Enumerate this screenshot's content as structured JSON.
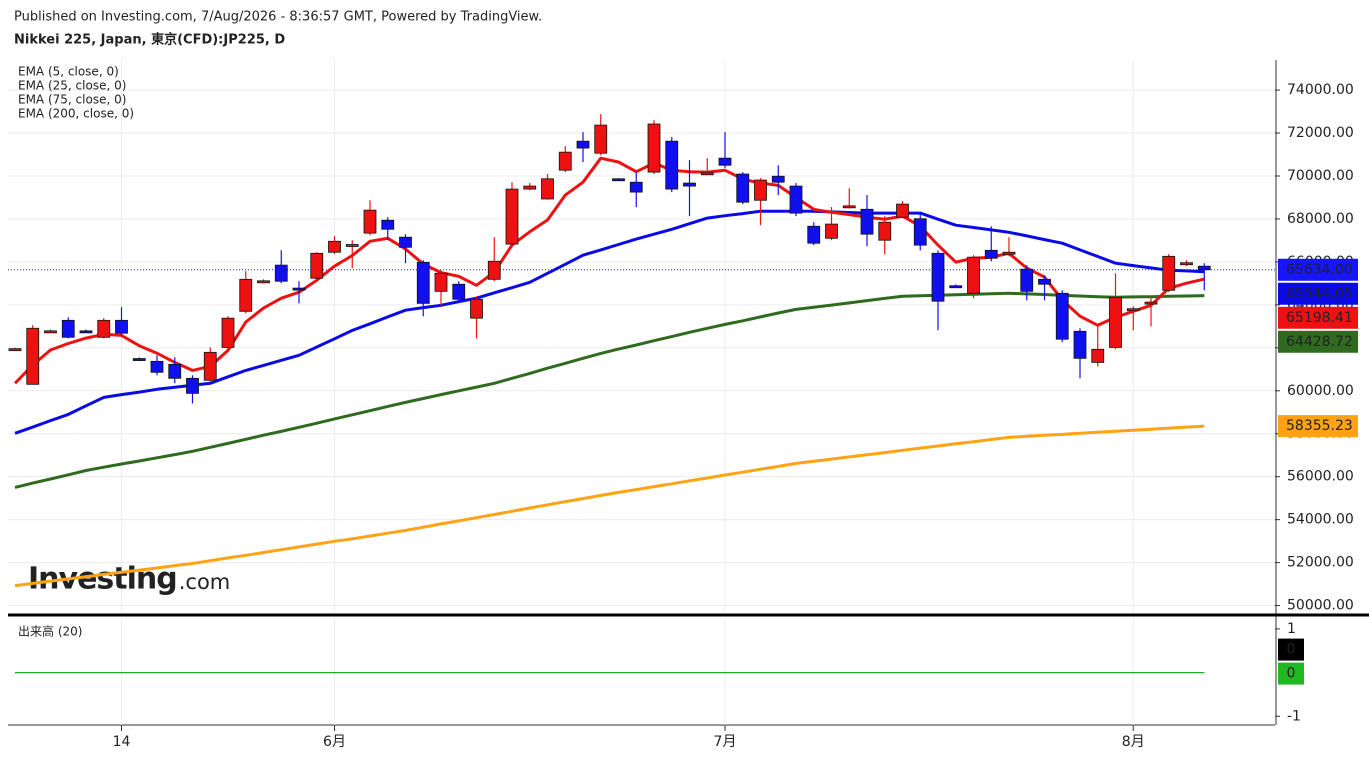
{
  "chart_data": {
    "type": "candlestick",
    "subtitle": "Published on Investing.com, 7/Aug/2026 - 8:36:57 GMT, Powered by TradingView.",
    "title": "Nikkei 225, Japan, 東京(CFD):JP225, D",
    "watermark": [
      "Investing",
      ".com"
    ],
    "categories": [
      null,
      null,
      null,
      null,
      null,
      null,
      "14",
      null,
      null,
      null,
      null,
      null,
      null,
      null,
      null,
      null,
      null,
      null,
      "6月",
      null,
      null,
      null,
      null,
      null,
      null,
      null,
      null,
      null,
      null,
      null,
      null,
      null,
      null,
      null,
      null,
      null,
      null,
      null,
      null,
      null,
      "7月",
      null,
      null,
      null,
      null,
      null,
      null,
      null,
      null,
      null,
      null,
      null,
      null,
      null,
      null,
      null,
      null,
      null,
      null,
      null,
      null,
      null,
      null,
      "8月",
      null,
      null,
      null,
      null
    ],
    "open": [
      61930,
      60300,
      62750,
      63280,
      62790,
      62490,
      63280,
      61500,
      61370,
      61230,
      60580,
      60490,
      62020,
      63700,
      65080,
      65850,
      64780,
      65240,
      66450,
      66740,
      67340,
      67940,
      67150,
      65980,
      64630,
      64960,
      63380,
      65190,
      66830,
      69390,
      68930,
      70270,
      71620,
      71060,
      69870,
      69710,
      70180,
      71620,
      69670,
      70110,
      70830,
      70090,
      68870,
      69990,
      69530,
      67660,
      67100,
      68570,
      68450,
      67010,
      68080,
      68010,
      66400,
      64890,
      64540,
      66540,
      66420,
      65660,
      65190,
      64540,
      62770,
      61320,
      62020,
      63770,
      64100,
      64680,
      65930,
      65800
    ],
    "high": [
      62000,
      63050,
      62850,
      63420,
      62850,
      63380,
      63890,
      61550,
      61650,
      61560,
      60720,
      62020,
      63470,
      65570,
      65190,
      66540,
      65100,
      66450,
      67200,
      67010,
      68870,
      68080,
      67290,
      66080,
      65610,
      65100,
      64400,
      67150,
      69710,
      69670,
      70090,
      71390,
      72040,
      72880,
      69900,
      70180,
      72600,
      71810,
      70740,
      70830,
      72040,
      70180,
      69900,
      70500,
      69670,
      67850,
      68550,
      69430,
      69110,
      68130,
      68830,
      68220,
      66540,
      64950,
      66310,
      67660,
      67150,
      65850,
      65380,
      64680,
      62910,
      63050,
      65470,
      63930,
      64310,
      66360,
      66080,
      65940
    ],
    "low": [
      61900,
      60300,
      62700,
      62440,
      62700,
      62440,
      62580,
      61380,
      60720,
      60350,
      59410,
      60390,
      61930,
      63610,
      65010,
      65010,
      64070,
      65150,
      66360,
      65710,
      67240,
      67010,
      65940,
      63470,
      63980,
      64120,
      62440,
      65100,
      66730,
      69340,
      68900,
      70180,
      70650,
      70970,
      69800,
      68550,
      70090,
      69250,
      68130,
      70040,
      70370,
      68690,
      67710,
      69110,
      68130,
      66780,
      67010,
      68500,
      66730,
      66360,
      68040,
      66540,
      62820,
      64800,
      64310,
      66030,
      66260,
      64210,
      64210,
      62260,
      60580,
      61140,
      61930,
      62820,
      63000,
      64590,
      65800,
      64680
    ],
    "close": [
      61960,
      62910,
      62790,
      62490,
      62750,
      63280,
      62680,
      61450,
      60860,
      60580,
      59880,
      61790,
      63380,
      65190,
      65120,
      65100,
      64700,
      66400,
      66960,
      66810,
      68410,
      67520,
      66680,
      64070,
      65470,
      64260,
      64260,
      66030,
      69390,
      69530,
      69870,
      71110,
      71300,
      72370,
      69830,
      69250,
      72420,
      69390,
      69530,
      70150,
      70500,
      68780,
      69810,
      69710,
      68270,
      66870,
      67760,
      68610,
      67290,
      67850,
      68690,
      66780,
      64170,
      64850,
      66220,
      66170,
      66450,
      64630,
      64960,
      62400,
      61510,
      61930,
      64350,
      63820,
      64130,
      66260,
      65960,
      65634
    ],
    "up_color": "#ee1111",
    "down_color": "#1010ee",
    "series": [
      {
        "name": "EMA (5, close, 0)",
        "color": "#ee1111",
        "values": [
          60350,
          61200,
          61900,
          62200,
          62450,
          62630,
          62580,
          62100,
          61750,
          61320,
          60950,
          61140,
          61880,
          63200,
          63850,
          64310,
          64590,
          65150,
          65800,
          66300,
          66960,
          67100,
          66600,
          65900,
          65500,
          65330,
          64910,
          65520,
          66780,
          67400,
          67950,
          69110,
          69710,
          70830,
          70650,
          70200,
          70600,
          70270,
          70200,
          70180,
          70270,
          69850,
          69670,
          69560,
          69000,
          68450,
          68310,
          68200,
          68080,
          67990,
          68130,
          67660,
          66780,
          65990,
          66170,
          66220,
          66400,
          65710,
          65290,
          64220,
          63470,
          63050,
          63420,
          63700,
          63980,
          64770,
          65010,
          65198.41
        ]
      },
      {
        "name": "EMA (25, close, 0)",
        "color": "#0a0ae6",
        "values": [
          58020,
          58310,
          58610,
          58900,
          59300,
          59690,
          59820,
          59940,
          60070,
          60160,
          60260,
          60350,
          60650,
          60950,
          61180,
          61420,
          61650,
          62040,
          62420,
          62810,
          63120,
          63440,
          63750,
          63870,
          63980,
          64150,
          64310,
          64560,
          64800,
          65050,
          65470,
          65890,
          66310,
          66560,
          66810,
          67060,
          67290,
          67520,
          67780,
          68040,
          68150,
          68250,
          68360,
          68360,
          68360,
          68360,
          68330,
          68300,
          68270,
          68270,
          68270,
          68270,
          67990,
          67710,
          67600,
          67490,
          67380,
          67210,
          67040,
          66870,
          66560,
          66250,
          65940,
          65830,
          65720,
          65610,
          65580,
          65544.05
        ]
      },
      {
        "name": "EMA (75, close, 0)",
        "color": "#2e6b1e",
        "values": [
          55500,
          55700,
          55890,
          56090,
          56290,
          56440,
          56590,
          56730,
          56880,
          57030,
          57180,
          57370,
          57550,
          57740,
          57930,
          58110,
          58300,
          58490,
          58690,
          58880,
          59070,
          59270,
          59460,
          59640,
          59820,
          60000,
          60170,
          60350,
          60580,
          60810,
          61050,
          61280,
          61510,
          61740,
          61940,
          62130,
          62330,
          62520,
          62720,
          62910,
          63090,
          63260,
          63440,
          63620,
          63790,
          63890,
          63990,
          64090,
          64200,
          64300,
          64400,
          64420,
          64450,
          64470,
          64490,
          64520,
          64540,
          64510,
          64480,
          64440,
          64410,
          64380,
          64350,
          64370,
          64380,
          64400,
          64410,
          64428.72
        ]
      },
      {
        "name": "EMA (200, close, 0)",
        "color": "#ffa214",
        "values": [
          50930,
          51030,
          51140,
          51240,
          51340,
          51450,
          51550,
          51650,
          51750,
          51860,
          51960,
          52090,
          52220,
          52340,
          52470,
          52600,
          52730,
          52860,
          52990,
          53110,
          53240,
          53370,
          53500,
          53650,
          53800,
          53940,
          54090,
          54240,
          54390,
          54540,
          54690,
          54840,
          54980,
          55130,
          55270,
          55400,
          55540,
          55670,
          55810,
          55940,
          56080,
          56210,
          56350,
          56480,
          56620,
          56720,
          56820,
          56920,
          57020,
          57120,
          57230,
          57330,
          57430,
          57530,
          57630,
          57730,
          57830,
          57880,
          57930,
          57970,
          58020,
          58070,
          58120,
          58160,
          58210,
          58260,
          58310,
          58355.23
        ]
      }
    ],
    "last_price": {
      "value": 65634,
      "label": "65634.00",
      "color": "#1515ff"
    },
    "ylim": [
      49700,
      75400
    ],
    "yticks": [
      {
        "value": 50000,
        "label": "50000.00"
      },
      {
        "value": 52000,
        "label": "52000.00"
      },
      {
        "value": 54000,
        "label": "54000.00"
      },
      {
        "value": 56000,
        "label": "56000.00"
      },
      {
        "value": 58000,
        "label": "58000.00"
      },
      {
        "value": 60000,
        "label": "60000.00"
      },
      {
        "value": 62000,
        "label": "62000.00"
      },
      {
        "value": 64000,
        "label": "64000.00"
      },
      {
        "value": 66000,
        "label": "66000.00"
      },
      {
        "value": 68000,
        "label": "68000.00"
      },
      {
        "value": 70000,
        "label": "70000.00"
      },
      {
        "value": 72000,
        "label": "72000.00"
      },
      {
        "value": 74000,
        "label": "74000.00"
      }
    ],
    "grid": true,
    "volume": {
      "type": "line",
      "title": "出来高 (20)",
      "ylim": [
        -1.2,
        1.25
      ],
      "yticks": [
        1,
        -1
      ],
      "series": [
        {
          "color": "#000000",
          "values": [
            0,
            0,
            0,
            0,
            0,
            0,
            0,
            0,
            0,
            0,
            0,
            0,
            0,
            0,
            0,
            0,
            0,
            0,
            0,
            0,
            0,
            0,
            0,
            0,
            0,
            0,
            0,
            0,
            0,
            0,
            0,
            0,
            0,
            0,
            0,
            0,
            0,
            0,
            0,
            0,
            0,
            0,
            0,
            0,
            0,
            0,
            0,
            0,
            0,
            0,
            0,
            0,
            0,
            0,
            0,
            0,
            0,
            0,
            0,
            0,
            0,
            0,
            0,
            0,
            0,
            0,
            0,
            0
          ]
        },
        {
          "color": "#22b822",
          "values": [
            0,
            0,
            0,
            0,
            0,
            0,
            0,
            0,
            0,
            0,
            0,
            0,
            0,
            0,
            0,
            0,
            0,
            0,
            0,
            0,
            0,
            0,
            0,
            0,
            0,
            0,
            0,
            0,
            0,
            0,
            0,
            0,
            0,
            0,
            0,
            0,
            0,
            0,
            0,
            0,
            0,
            0,
            0,
            0,
            0,
            0,
            0,
            0,
            0,
            0,
            0,
            0,
            0,
            0,
            0,
            0,
            0,
            0,
            0,
            0,
            0,
            0,
            0,
            0,
            0,
            0,
            0,
            0
          ]
        }
      ]
    }
  }
}
